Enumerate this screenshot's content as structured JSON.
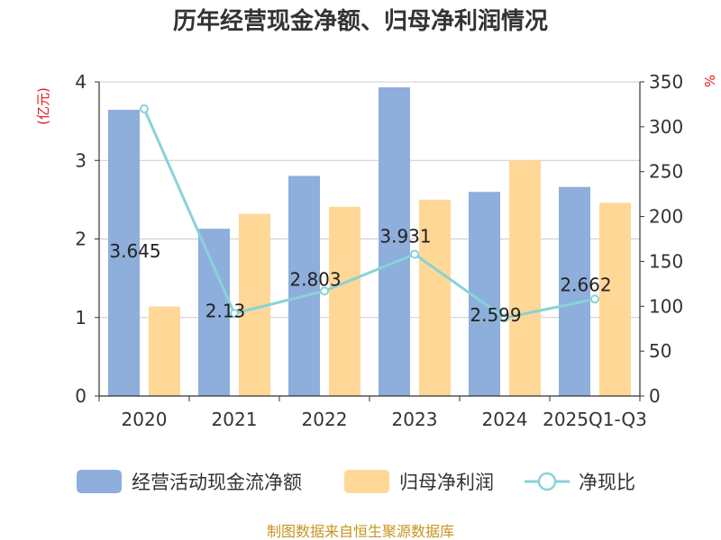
{
  "title": "历年经营现金净额、归母净利润情况",
  "source": "制图数据来自恒生聚源数据库",
  "colors": {
    "operating_cash": "#8eaedb",
    "net_profit": "#ffd797",
    "ratio_line": "#88d3d8"
  },
  "chart_data": {
    "type": "bar",
    "title": "历年经营现金净额、归母净利润情况",
    "categories": [
      "2020",
      "2021",
      "2022",
      "2023",
      "2024",
      "2025Q1-Q3"
    ],
    "y_left": {
      "unit": "(亿元)",
      "ylim": [
        0,
        4
      ],
      "ticks": [
        0,
        1,
        2,
        3,
        4
      ]
    },
    "y_right": {
      "unit": "%",
      "ylim": [
        0,
        350
      ],
      "ticks": [
        0,
        50,
        100,
        150,
        200,
        250,
        300,
        350
      ]
    },
    "series": [
      {
        "name": "经营活动现金流净额",
        "type": "bar",
        "axis": "left",
        "values": [
          3.645,
          2.13,
          2.803,
          3.931,
          2.599,
          2.662
        ],
        "labels": [
          "3.645",
          "2.13",
          "2.803",
          "3.931",
          "2.599",
          "2.662"
        ]
      },
      {
        "name": "归母净利润",
        "type": "bar",
        "axis": "left",
        "values": [
          1.14,
          2.32,
          2.41,
          2.5,
          3.0,
          2.46
        ]
      },
      {
        "name": "净现比",
        "type": "line",
        "axis": "right",
        "values": [
          320,
          92,
          117,
          158,
          87,
          108
        ]
      }
    ],
    "grid": true,
    "legend_position": "bottom"
  }
}
